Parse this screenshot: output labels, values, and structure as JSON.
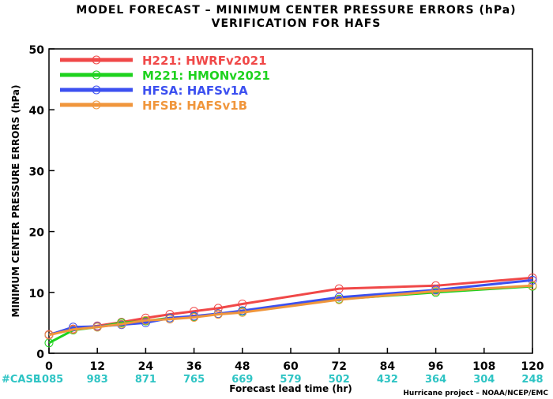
{
  "chart_data": {
    "type": "line",
    "title": "MODEL FORECAST – MINIMUM CENTER PRESSURE ERRORS (hPa)",
    "subtitle": "VERIFICATION FOR HAFS",
    "xlabel": "Forecast lead time (hr)",
    "ylabel": "MINIMUM CENTER PRESSURE ERRORS (hPa)",
    "xlim": [
      0,
      120
    ],
    "ylim": [
      0,
      50
    ],
    "xticks": [
      "0",
      "12",
      "24",
      "36",
      "48",
      "60",
      "72",
      "84",
      "96",
      "108",
      "120"
    ],
    "yticks": [
      "0",
      "10",
      "20",
      "30",
      "40",
      "50"
    ],
    "grid": false,
    "legend_position": "top-left",
    "case_label": "#CASE",
    "case_counts": [
      "1085",
      "983",
      "871",
      "765",
      "669",
      "579",
      "502",
      "432",
      "364",
      "304",
      "248"
    ],
    "credit": "Hurricane project – NOAA/NCEP/EMC",
    "series": [
      {
        "name": "H221: HWRFv2021",
        "color": "#f04848",
        "x": [
          0,
          6,
          12,
          18,
          24,
          30,
          36,
          42,
          48,
          72,
          96,
          120
        ],
        "y": [
          3.1,
          4.0,
          4.5,
          5.1,
          5.8,
          6.4,
          6.9,
          7.4,
          8.1,
          10.6,
          11.1,
          12.4
        ]
      },
      {
        "name": "M221: HMONv2021",
        "color": "#1ed21e",
        "x": [
          0,
          6,
          12,
          18,
          24,
          30,
          36,
          42,
          48,
          72,
          96,
          120
        ],
        "y": [
          1.7,
          3.8,
          4.3,
          5.0,
          5.3,
          5.8,
          6.0,
          6.5,
          6.9,
          8.9,
          10.0,
          11.0
        ]
      },
      {
        "name": "HFSA: HAFSv1A",
        "color": "#3c50f0",
        "x": [
          0,
          6,
          12,
          18,
          24,
          30,
          36,
          42,
          48,
          72,
          96,
          120
        ],
        "y": [
          3.0,
          4.3,
          4.4,
          4.7,
          5.0,
          5.8,
          6.1,
          6.5,
          7.0,
          9.2,
          10.4,
          12.0
        ]
      },
      {
        "name": "HFSB: HAFSv1B",
        "color": "#f0963c",
        "x": [
          0,
          6,
          12,
          18,
          24,
          30,
          36,
          42,
          48,
          72,
          96,
          120
        ],
        "y": [
          3.0,
          3.9,
          4.3,
          4.8,
          5.4,
          5.6,
          5.9,
          6.4,
          6.7,
          8.8,
          10.2,
          11.1
        ]
      }
    ]
  }
}
